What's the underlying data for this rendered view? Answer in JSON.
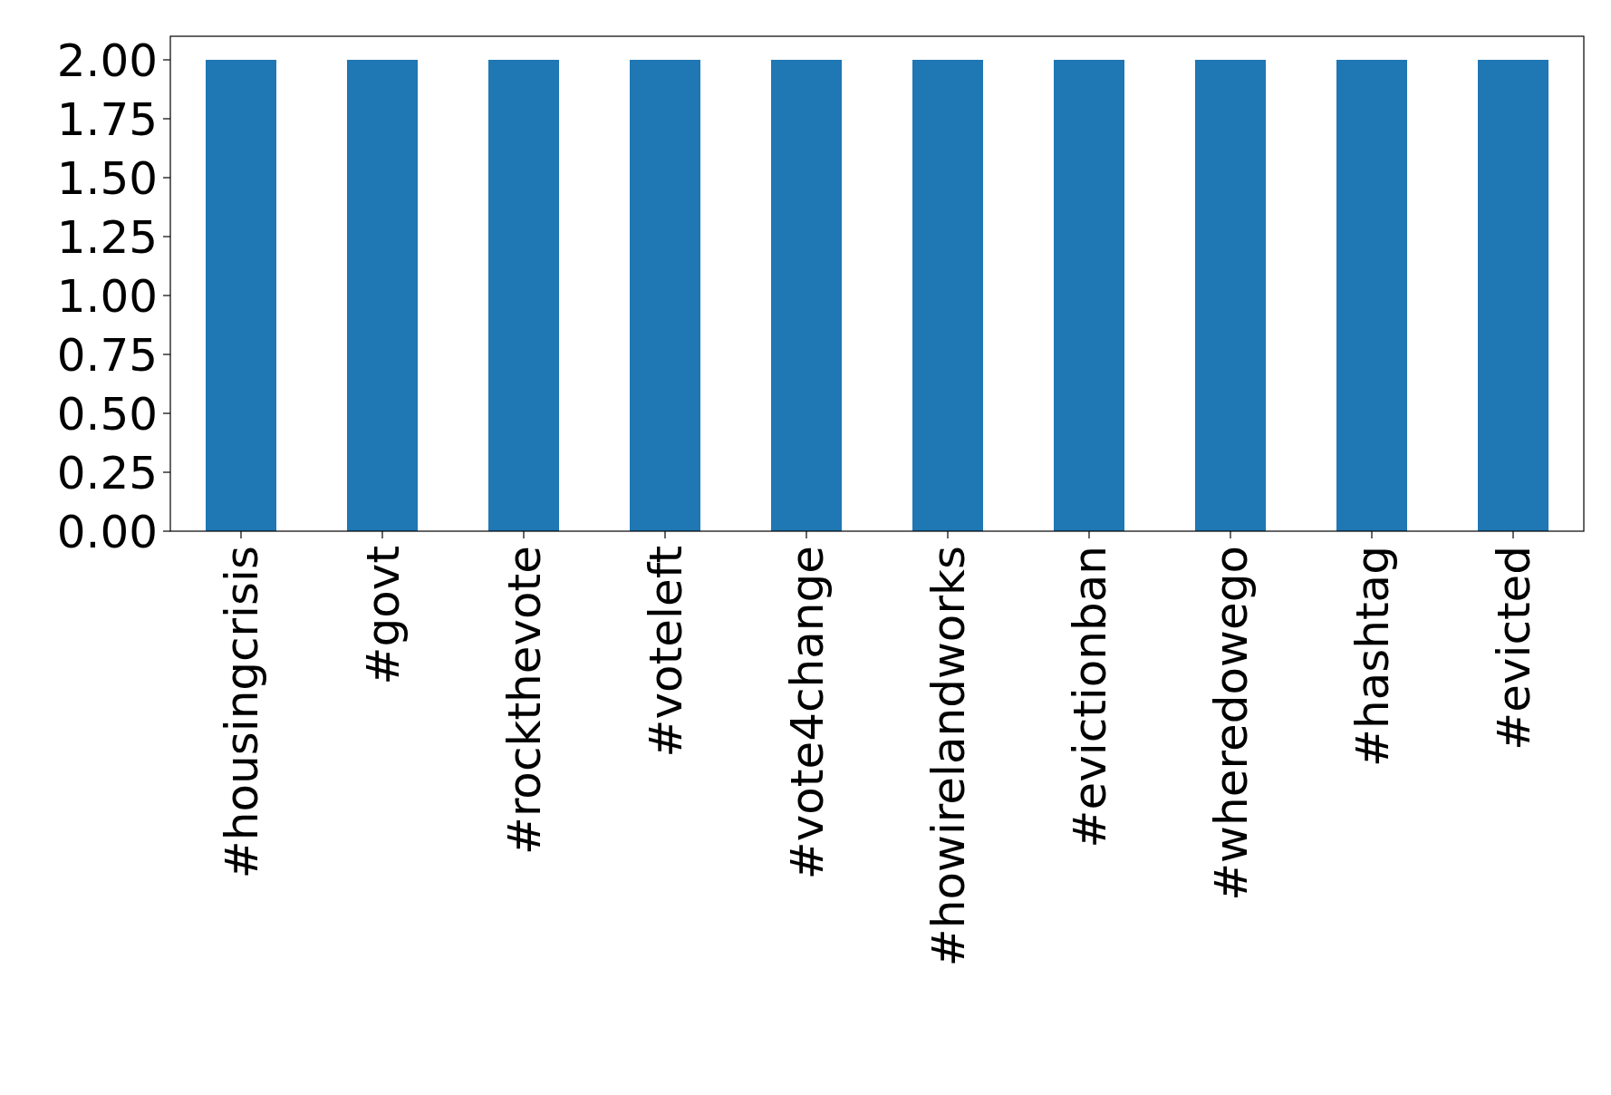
{
  "chart_data": {
    "type": "bar",
    "categories": [
      "#housingcrisis",
      "#govt",
      "#rockthevote",
      "#voteleft",
      "#vote4change",
      "#howirelandworks",
      "#evictionban",
      "#wheredowego",
      "#hashtag",
      "#evicted"
    ],
    "values": [
      2,
      2,
      2,
      2,
      2,
      2,
      2,
      2,
      2,
      2
    ],
    "color": "#1f77b4",
    "ylim": [
      0,
      2.1
    ],
    "yticks": [
      {
        "value": 0,
        "label": "0.00"
      },
      {
        "value": 0.25,
        "label": "0.25"
      },
      {
        "value": 0.5,
        "label": "0.50"
      },
      {
        "value": 0.75,
        "label": "0.75"
      },
      {
        "value": 1,
        "label": "1.00"
      },
      {
        "value": 1.25,
        "label": "1.25"
      },
      {
        "value": 1.5,
        "label": "1.50"
      },
      {
        "value": 1.75,
        "label": "1.75"
      },
      {
        "value": 2,
        "label": "2.00"
      }
    ]
  }
}
